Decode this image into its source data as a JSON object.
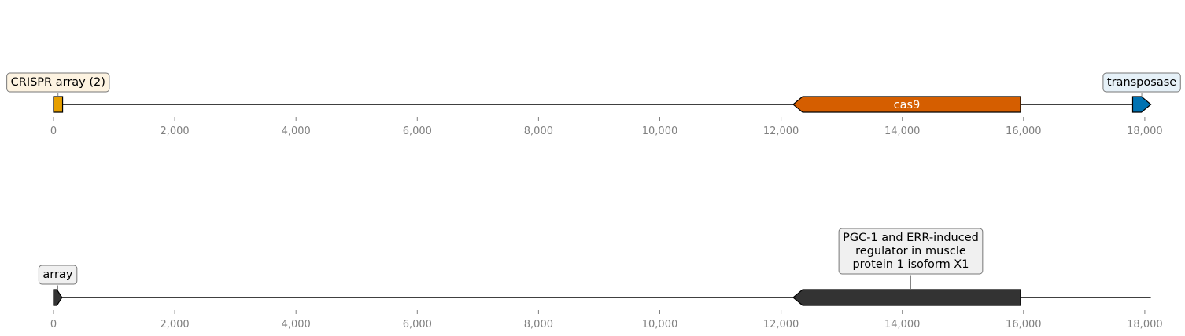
{
  "diagram": {
    "type": "genomic-feature-map",
    "axis": {
      "min": 0,
      "max": 18000,
      "step": 2000,
      "sequence_end": 18100
    },
    "tracks": [
      {
        "name": "track-top",
        "features": [
          {
            "label": "CRISPR array (2)",
            "start": 0,
            "end": 150,
            "strand": 0,
            "color": "#e69f00",
            "label_style": "boxed",
            "box_color": "#fdf3e1"
          },
          {
            "label": "cas9",
            "start": 12200,
            "end": 15950,
            "strand": -1,
            "color": "#d55e00",
            "label_style": "inline"
          },
          {
            "label": "transposase",
            "start": 17800,
            "end": 18100,
            "strand": 1,
            "color": "#0072b2",
            "label_style": "boxed",
            "box_color": "#e6f1f8"
          }
        ]
      },
      {
        "name": "track-bottom",
        "features": [
          {
            "label": "array",
            "start": 0,
            "end": 140,
            "strand": 1,
            "color": "#333333",
            "label_style": "boxed",
            "box_color": "#f0f0f0"
          },
          {
            "label": "PGC-1 and ERR-induced\nregulator in muscle\nprotein 1 isoform X1",
            "start": 12200,
            "end": 15950,
            "strand": -1,
            "color": "#333333",
            "label_style": "boxed",
            "box_color": "#f0f0f0"
          }
        ]
      }
    ],
    "tick_labels": [
      "0",
      "2,000",
      "4,000",
      "6,000",
      "8,000",
      "10,000",
      "12,000",
      "14,000",
      "16,000",
      "18,000"
    ]
  }
}
